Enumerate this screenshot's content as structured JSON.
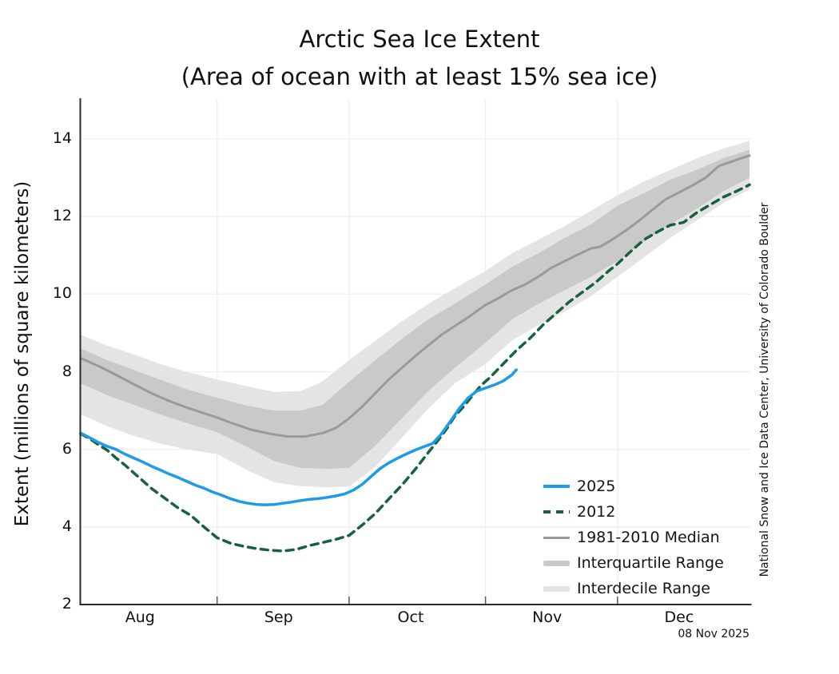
{
  "title": "Arctic Sea Ice Extent",
  "subtitle": "(Area of ocean with at least 15% sea ice)",
  "y_axis_label": "Extent (millions of square kilometers)",
  "credit": "National Snow and Ice Data Center, University of Colorado Boulder",
  "date_label": "08 Nov 2025",
  "colors": {
    "line_2025": "#1e9be8",
    "line_2012": "#17613c",
    "median_line": "#9a9a9a",
    "interquartile_band": "#c9c9c9",
    "interdecile_band": "#e4e4e4",
    "grid": "#efefef",
    "axis": "#2b2b2b",
    "tick": "#555555",
    "text": "#111111"
  },
  "chart_data": {
    "type": "line",
    "title": "Arctic Sea Ice Extent",
    "subtitle": "(Area of ocean with at least 15% sea ice)",
    "xlabel": "",
    "ylabel": "Extent (millions of square kilometers)",
    "x_unit": "days since Aug 1",
    "x_range_days": [
      0,
      152
    ],
    "ylim": [
      2,
      15
    ],
    "grid": true,
    "legend_position": "inside lower right",
    "y_ticks": [
      2,
      4,
      6,
      8,
      10,
      12,
      14
    ],
    "y_gridlines": [
      4,
      6,
      8,
      10,
      12,
      14
    ],
    "month_boundary_days": [
      31,
      61,
      92,
      122
    ],
    "month_labels": [
      {
        "label": "Aug",
        "day": 13.5
      },
      {
        "label": "Sep",
        "day": 45
      },
      {
        "label": "Oct",
        "day": 75
      },
      {
        "label": "Nov",
        "day": 106
      },
      {
        "label": "Dec",
        "day": 136
      }
    ],
    "bands": [
      {
        "name": "Interdecile Range",
        "upper": [
          [
            0,
            8.95
          ],
          [
            6,
            8.68
          ],
          [
            12,
            8.45
          ],
          [
            18,
            8.2
          ],
          [
            24,
            8.0
          ],
          [
            31,
            7.8
          ],
          [
            38,
            7.62
          ],
          [
            44,
            7.48
          ],
          [
            50,
            7.5
          ],
          [
            55,
            7.75
          ],
          [
            61,
            8.3
          ],
          [
            67,
            8.8
          ],
          [
            73,
            9.3
          ],
          [
            79,
            9.75
          ],
          [
            85,
            10.15
          ],
          [
            92,
            10.6
          ],
          [
            98,
            11.05
          ],
          [
            104,
            11.4
          ],
          [
            110,
            11.75
          ],
          [
            116,
            12.15
          ],
          [
            122,
            12.55
          ],
          [
            128,
            12.9
          ],
          [
            134,
            13.2
          ],
          [
            140,
            13.5
          ],
          [
            146,
            13.75
          ],
          [
            152,
            13.95
          ]
        ],
        "lower": [
          [
            0,
            6.9
          ],
          [
            6,
            6.6
          ],
          [
            12,
            6.35
          ],
          [
            18,
            6.15
          ],
          [
            24,
            6.0
          ],
          [
            31,
            5.88
          ],
          [
            38,
            5.45
          ],
          [
            44,
            5.15
          ],
          [
            50,
            5.05
          ],
          [
            56,
            5.02
          ],
          [
            61,
            5.04
          ],
          [
            67,
            5.55
          ],
          [
            73,
            6.3
          ],
          [
            79,
            7.05
          ],
          [
            85,
            7.7
          ],
          [
            92,
            8.2
          ],
          [
            98,
            8.8
          ],
          [
            104,
            9.2
          ],
          [
            110,
            9.55
          ],
          [
            116,
            9.95
          ],
          [
            122,
            10.45
          ],
          [
            128,
            10.95
          ],
          [
            134,
            11.45
          ],
          [
            140,
            11.9
          ],
          [
            146,
            12.35
          ],
          [
            152,
            12.7
          ]
        ]
      },
      {
        "name": "Interquartile Range",
        "upper": [
          [
            0,
            8.6
          ],
          [
            6,
            8.3
          ],
          [
            12,
            8.05
          ],
          [
            18,
            7.8
          ],
          [
            24,
            7.55
          ],
          [
            31,
            7.33
          ],
          [
            38,
            7.12
          ],
          [
            44,
            7.0
          ],
          [
            50,
            7.0
          ],
          [
            55,
            7.15
          ],
          [
            61,
            7.74
          ],
          [
            67,
            8.3
          ],
          [
            73,
            8.85
          ],
          [
            79,
            9.35
          ],
          [
            85,
            9.75
          ],
          [
            92,
            10.25
          ],
          [
            98,
            10.7
          ],
          [
            104,
            11.05
          ],
          [
            110,
            11.45
          ],
          [
            116,
            11.8
          ],
          [
            122,
            12.28
          ],
          [
            128,
            12.6
          ],
          [
            134,
            12.95
          ],
          [
            140,
            13.2
          ],
          [
            146,
            13.5
          ],
          [
            152,
            13.72
          ]
        ],
        "lower": [
          [
            0,
            7.7
          ],
          [
            6,
            7.4
          ],
          [
            12,
            7.15
          ],
          [
            18,
            6.9
          ],
          [
            24,
            6.68
          ],
          [
            31,
            6.44
          ],
          [
            38,
            6.05
          ],
          [
            44,
            5.7
          ],
          [
            50,
            5.52
          ],
          [
            56,
            5.5
          ],
          [
            61,
            5.52
          ],
          [
            67,
            6.1
          ],
          [
            73,
            6.8
          ],
          [
            79,
            7.5
          ],
          [
            85,
            8.1
          ],
          [
            92,
            8.75
          ],
          [
            98,
            9.35
          ],
          [
            104,
            9.75
          ],
          [
            110,
            10.1
          ],
          [
            116,
            10.45
          ],
          [
            122,
            10.85
          ],
          [
            128,
            11.35
          ],
          [
            134,
            11.8
          ],
          [
            140,
            12.2
          ],
          [
            146,
            12.65
          ],
          [
            152,
            13.0
          ]
        ]
      }
    ],
    "series": [
      {
        "name": "1981-2010 Median",
        "dashed": false,
        "width": 3,
        "color_key": "median_line",
        "points": [
          [
            0,
            8.35
          ],
          [
            4,
            8.15
          ],
          [
            8,
            7.92
          ],
          [
            12,
            7.68
          ],
          [
            16,
            7.45
          ],
          [
            20,
            7.25
          ],
          [
            24,
            7.08
          ],
          [
            28,
            6.93
          ],
          [
            31,
            6.82
          ],
          [
            35,
            6.65
          ],
          [
            39,
            6.5
          ],
          [
            43,
            6.4
          ],
          [
            47,
            6.33
          ],
          [
            51,
            6.33
          ],
          [
            55,
            6.42
          ],
          [
            58,
            6.55
          ],
          [
            61,
            6.8
          ],
          [
            64,
            7.1
          ],
          [
            67,
            7.45
          ],
          [
            70,
            7.8
          ],
          [
            73,
            8.1
          ],
          [
            76,
            8.4
          ],
          [
            79,
            8.68
          ],
          [
            82,
            8.95
          ],
          [
            85,
            9.18
          ],
          [
            88,
            9.4
          ],
          [
            92,
            9.72
          ],
          [
            95,
            9.9
          ],
          [
            98,
            10.1
          ],
          [
            101,
            10.25
          ],
          [
            104,
            10.45
          ],
          [
            107,
            10.68
          ],
          [
            110,
            10.85
          ],
          [
            113,
            11.02
          ],
          [
            116,
            11.18
          ],
          [
            118,
            11.22
          ],
          [
            121,
            11.42
          ],
          [
            124,
            11.65
          ],
          [
            127,
            11.9
          ],
          [
            130,
            12.18
          ],
          [
            133,
            12.45
          ],
          [
            136,
            12.62
          ],
          [
            139,
            12.8
          ],
          [
            142,
            13.0
          ],
          [
            145,
            13.3
          ],
          [
            148,
            13.42
          ],
          [
            150,
            13.5
          ],
          [
            152,
            13.57
          ]
        ]
      },
      {
        "name": "2012",
        "dashed": true,
        "width": 3.5,
        "color_key": "line_2012",
        "points": [
          [
            0,
            6.4
          ],
          [
            2,
            6.28
          ],
          [
            4,
            6.12
          ],
          [
            6,
            5.98
          ],
          [
            8,
            5.78
          ],
          [
            10,
            5.6
          ],
          [
            13,
            5.3
          ],
          [
            16,
            5.0
          ],
          [
            19,
            4.75
          ],
          [
            22,
            4.5
          ],
          [
            25,
            4.3
          ],
          [
            28,
            4.0
          ],
          [
            31,
            3.72
          ],
          [
            34,
            3.58
          ],
          [
            37,
            3.5
          ],
          [
            40,
            3.44
          ],
          [
            43,
            3.4
          ],
          [
            46,
            3.38
          ],
          [
            49,
            3.42
          ],
          [
            52,
            3.52
          ],
          [
            55,
            3.6
          ],
          [
            58,
            3.68
          ],
          [
            61,
            3.78
          ],
          [
            64,
            4.05
          ],
          [
            67,
            4.35
          ],
          [
            70,
            4.72
          ],
          [
            73,
            5.08
          ],
          [
            76,
            5.48
          ],
          [
            79,
            5.92
          ],
          [
            81,
            6.2
          ],
          [
            83,
            6.5
          ],
          [
            85,
            6.85
          ],
          [
            87,
            7.1
          ],
          [
            89,
            7.38
          ],
          [
            91,
            7.65
          ],
          [
            93,
            7.85
          ],
          [
            96,
            8.2
          ],
          [
            99,
            8.55
          ],
          [
            102,
            8.85
          ],
          [
            105,
            9.2
          ],
          [
            108,
            9.5
          ],
          [
            111,
            9.8
          ],
          [
            114,
            10.05
          ],
          [
            117,
            10.3
          ],
          [
            120,
            10.6
          ],
          [
            122,
            10.78
          ],
          [
            125,
            11.1
          ],
          [
            128,
            11.4
          ],
          [
            131,
            11.6
          ],
          [
            134,
            11.78
          ],
          [
            137,
            11.85
          ],
          [
            140,
            12.1
          ],
          [
            143,
            12.3
          ],
          [
            146,
            12.5
          ],
          [
            149,
            12.65
          ],
          [
            152,
            12.82
          ]
        ]
      },
      {
        "name": "2025",
        "dashed": false,
        "width": 3.5,
        "color_key": "line_2025",
        "points": [
          [
            0,
            6.42
          ],
          [
            2,
            6.3
          ],
          [
            4,
            6.18
          ],
          [
            6,
            6.08
          ],
          [
            8,
            6.0
          ],
          [
            10,
            5.88
          ],
          [
            12,
            5.78
          ],
          [
            14,
            5.68
          ],
          [
            16,
            5.57
          ],
          [
            18,
            5.47
          ],
          [
            20,
            5.37
          ],
          [
            22,
            5.28
          ],
          [
            24,
            5.18
          ],
          [
            26,
            5.08
          ],
          [
            28,
            5.0
          ],
          [
            30,
            4.9
          ],
          [
            32,
            4.82
          ],
          [
            34,
            4.73
          ],
          [
            36,
            4.66
          ],
          [
            38,
            4.61
          ],
          [
            40,
            4.58
          ],
          [
            42,
            4.57
          ],
          [
            44,
            4.58
          ],
          [
            46,
            4.61
          ],
          [
            48,
            4.64
          ],
          [
            50,
            4.68
          ],
          [
            52,
            4.71
          ],
          [
            54,
            4.73
          ],
          [
            56,
            4.76
          ],
          [
            58,
            4.8
          ],
          [
            60,
            4.85
          ],
          [
            62,
            4.95
          ],
          [
            64,
            5.1
          ],
          [
            66,
            5.3
          ],
          [
            68,
            5.5
          ],
          [
            70,
            5.65
          ],
          [
            72,
            5.77
          ],
          [
            74,
            5.88
          ],
          [
            76,
            5.98
          ],
          [
            78,
            6.07
          ],
          [
            80,
            6.15
          ],
          [
            82,
            6.4
          ],
          [
            84,
            6.72
          ],
          [
            86,
            7.05
          ],
          [
            88,
            7.32
          ],
          [
            90,
            7.5
          ],
          [
            92,
            7.58
          ],
          [
            94,
            7.66
          ],
          [
            96,
            7.76
          ],
          [
            98,
            7.92
          ],
          [
            99,
            8.05
          ]
        ]
      }
    ],
    "legend": [
      {
        "label": "2025",
        "swatch": "line",
        "dashed": false,
        "color_key": "line_2025",
        "thickness": 3.5
      },
      {
        "label": "2012",
        "swatch": "line",
        "dashed": true,
        "color_key": "line_2012",
        "thickness": 3.5
      },
      {
        "label": "1981-2010 Median",
        "swatch": "line",
        "dashed": false,
        "color_key": "median_line",
        "thickness": 3
      },
      {
        "label": "Interquartile Range",
        "swatch": "band",
        "dashed": false,
        "color_key": "interquartile_band",
        "thickness": 7
      },
      {
        "label": "Interdecile Range",
        "swatch": "band",
        "dashed": false,
        "color_key": "interdecile_band",
        "thickness": 7
      }
    ]
  }
}
